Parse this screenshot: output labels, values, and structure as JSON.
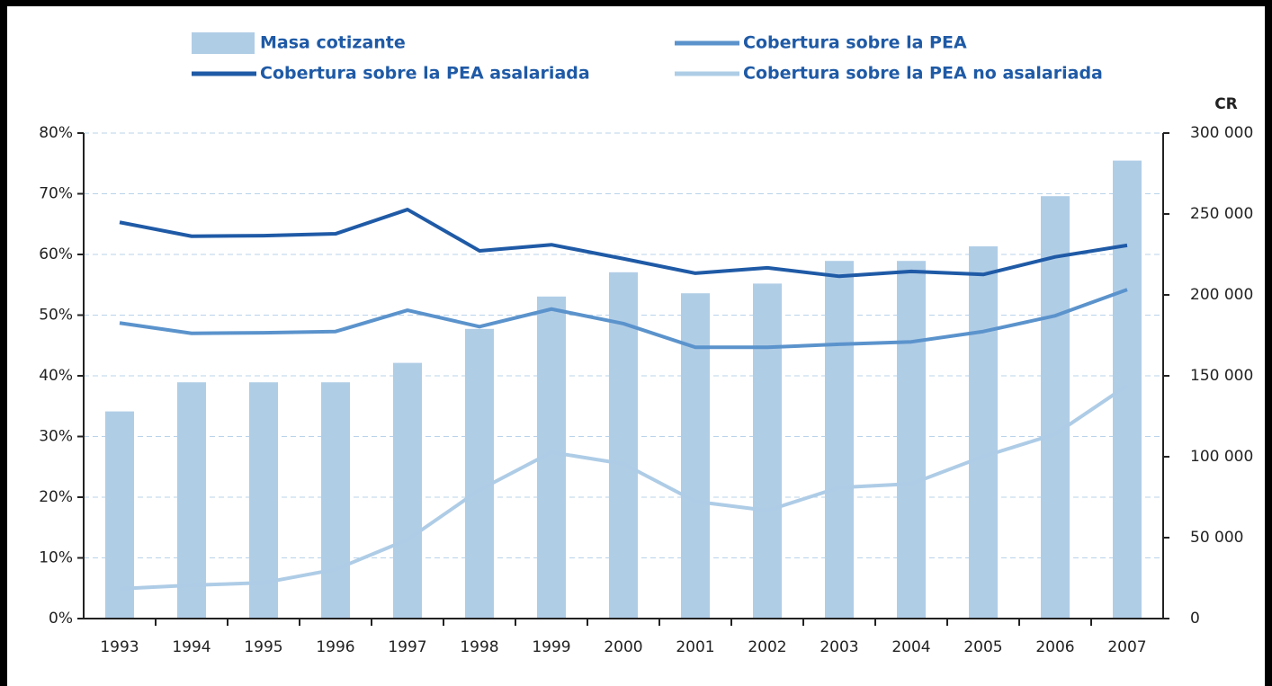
{
  "chart_data": {
    "type": "combo",
    "categories": [
      "1993",
      "1994",
      "1995",
      "1996",
      "1997",
      "1998",
      "1999",
      "2000",
      "2001",
      "2002",
      "2003",
      "2004",
      "2005",
      "2006",
      "2007"
    ],
    "y2_label": "CR",
    "ylim": [
      0,
      80
    ],
    "yticks": [
      {
        "value": 0,
        "label": "0%"
      },
      {
        "value": 10,
        "label": "10%"
      },
      {
        "value": 20,
        "label": "20%"
      },
      {
        "value": 30,
        "label": "30%"
      },
      {
        "value": 40,
        "label": "40%"
      },
      {
        "value": 50,
        "label": "50%"
      },
      {
        "value": 60,
        "label": "60%"
      },
      {
        "value": 70,
        "label": "70%"
      },
      {
        "value": 80,
        "label": "80%"
      }
    ],
    "y2lim": [
      0,
      300000
    ],
    "y2ticks": [
      0,
      {
        "value": 50000,
        "label": "50 000"
      },
      {
        "value": 100000,
        "label": "100 000"
      },
      {
        "value": 150000,
        "label": "150 000"
      },
      {
        "value": 200000,
        "label": "200 000"
      },
      {
        "value": 250000,
        "label": "250 000"
      },
      {
        "value": 300000,
        "label": "300 000"
      }
    ],
    "grid": true,
    "series": [
      {
        "name": "Masa cotizante",
        "type": "bar",
        "axis": "y2",
        "color": "#b0cde6",
        "values": [
          128000,
          146000,
          146000,
          146000,
          158000,
          179000,
          199000,
          214000,
          201000,
          207000,
          221000,
          221000,
          230000,
          261000,
          283000
        ]
      },
      {
        "name": "Cobertura sobre la PEA",
        "type": "line",
        "color": "#5b93cc",
        "values": [
          48.7,
          47.0,
          47.1,
          47.3,
          50.8,
          48.1,
          51.0,
          48.6,
          44.7,
          44.7,
          45.2,
          45.6,
          47.3,
          49.9,
          54.2
        ]
      },
      {
        "name": "Cobertura sobre la PEA asalariada",
        "type": "line",
        "color": "#1f5aa6",
        "values": [
          65.3,
          63.0,
          63.1,
          63.4,
          67.4,
          60.6,
          61.6,
          59.3,
          56.9,
          57.8,
          56.4,
          57.2,
          56.7,
          59.6,
          61.5
        ]
      },
      {
        "name": "Cobertura sobre la PEA no asalariada",
        "type": "line",
        "color": "#aecce6",
        "values": [
          4.9,
          5.5,
          5.9,
          8.1,
          13.0,
          21.2,
          27.4,
          25.5,
          19.3,
          17.8,
          21.6,
          22.2,
          26.7,
          30.4,
          38.4
        ]
      }
    ]
  }
}
